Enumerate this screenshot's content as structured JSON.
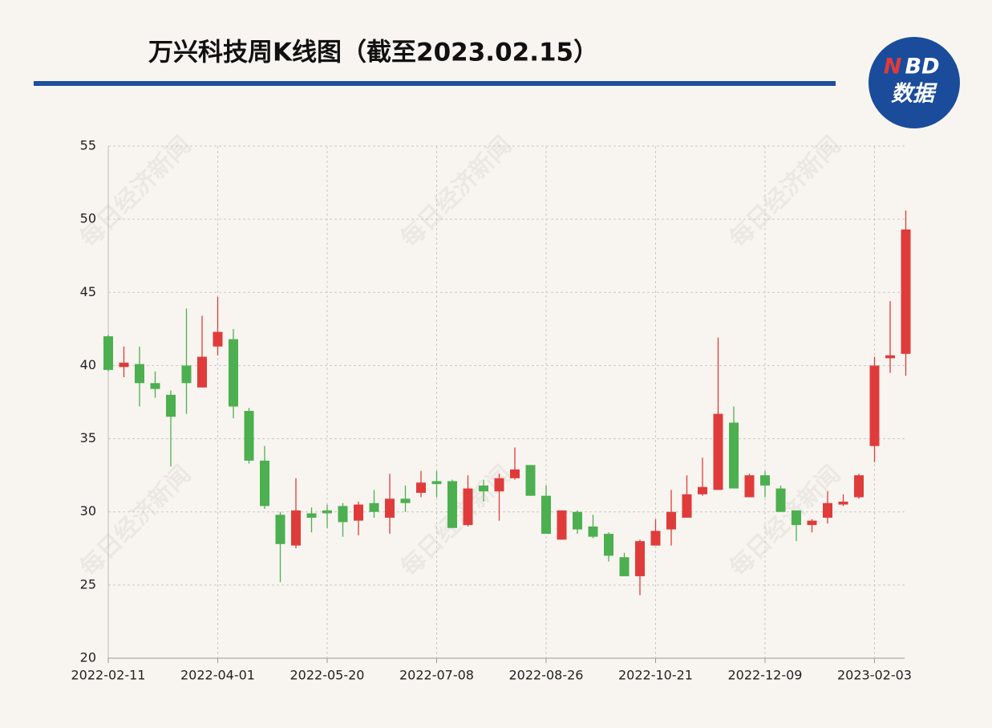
{
  "chart_data": {
    "type": "candlestick",
    "title": "万兴科技周K线图（截至2023.02.15）",
    "logo": {
      "mark_1": "N",
      "mark_2": "BD",
      "label": "数据"
    },
    "watermark": "每日经济新闻",
    "categories": [
      "2022-02-11",
      null,
      null,
      null,
      null,
      null,
      null,
      "2022-04-01",
      null,
      null,
      null,
      null,
      null,
      null,
      "2022-05-20",
      null,
      null,
      null,
      null,
      null,
      null,
      "2022-07-08",
      null,
      null,
      null,
      null,
      null,
      null,
      "2022-08-26",
      null,
      null,
      null,
      null,
      null,
      null,
      "2022-10-21",
      null,
      null,
      null,
      null,
      null,
      null,
      "2022-12-09",
      null,
      null,
      null,
      null,
      null,
      null,
      "2023-02-03",
      null,
      null
    ],
    "series": [
      {
        "up_color": "#e03b3b",
        "down_color": "#4caf50",
        "open": [
          42.0,
          39.9,
          40.1,
          38.8,
          38.0,
          40.0,
          38.5,
          41.3,
          41.8,
          36.9,
          33.5,
          29.8,
          27.7,
          29.9,
          30.1,
          30.4,
          29.4,
          30.6,
          29.6,
          30.9,
          31.3,
          32.1,
          32.1,
          29.1,
          31.8,
          31.4,
          32.3,
          33.2,
          31.1,
          28.1,
          30.0,
          29.0,
          28.5,
          26.9,
          25.6,
          27.7,
          28.8,
          29.6,
          31.2,
          31.5,
          36.1,
          31.0,
          32.5,
          31.6,
          30.1,
          29.1,
          29.6,
          30.5,
          31.0,
          34.5,
          40.5,
          40.8
        ],
        "high": [
          42.1,
          41.3,
          41.3,
          39.6,
          38.3,
          43.9,
          43.4,
          44.7,
          42.5,
          37.1,
          34.5,
          30.0,
          32.3,
          30.3,
          30.5,
          30.6,
          30.7,
          31.5,
          32.6,
          31.8,
          32.8,
          32.8,
          32.2,
          32.5,
          32.2,
          32.6,
          34.4,
          33.2,
          31.8,
          30.1,
          30.1,
          29.8,
          28.6,
          27.2,
          28.1,
          29.5,
          31.5,
          32.5,
          33.7,
          41.9,
          37.2,
          32.6,
          32.8,
          31.8,
          30.1,
          29.5,
          31.4,
          31.2,
          32.6,
          40.6,
          44.4,
          50.6
        ],
        "low": [
          39.6,
          39.2,
          37.2,
          37.8,
          33.1,
          36.7,
          38.5,
          40.7,
          36.4,
          33.3,
          30.2,
          25.2,
          27.5,
          28.6,
          28.9,
          28.3,
          28.4,
          29.6,
          28.5,
          30.0,
          31.0,
          31.0,
          28.9,
          29.0,
          30.7,
          29.4,
          32.2,
          31.1,
          28.5,
          28.1,
          28.5,
          28.2,
          26.6,
          25.6,
          24.3,
          27.7,
          27.7,
          29.6,
          31.1,
          31.5,
          31.6,
          31.0,
          31.0,
          30.0,
          28.0,
          28.6,
          29.2,
          30.4,
          30.9,
          33.4,
          39.5,
          39.3
        ],
        "close": [
          39.7,
          40.2,
          38.8,
          38.4,
          36.5,
          38.8,
          40.6,
          42.3,
          37.2,
          33.5,
          30.4,
          27.8,
          30.1,
          29.6,
          29.9,
          29.3,
          30.5,
          30.0,
          30.9,
          30.6,
          32.0,
          31.9,
          28.9,
          31.6,
          31.4,
          32.3,
          32.9,
          31.1,
          28.5,
          30.1,
          28.8,
          28.3,
          27.0,
          25.6,
          28.0,
          28.7,
          30.0,
          31.2,
          31.7,
          36.7,
          31.6,
          32.5,
          31.8,
          30.0,
          29.1,
          29.4,
          30.6,
          30.7,
          32.5,
          40.0,
          40.7,
          49.3
        ]
      }
    ],
    "ylim": [
      20,
      55
    ],
    "yticks": [
      20,
      25,
      30,
      35,
      40,
      45,
      50,
      55
    ],
    "grid": true
  }
}
